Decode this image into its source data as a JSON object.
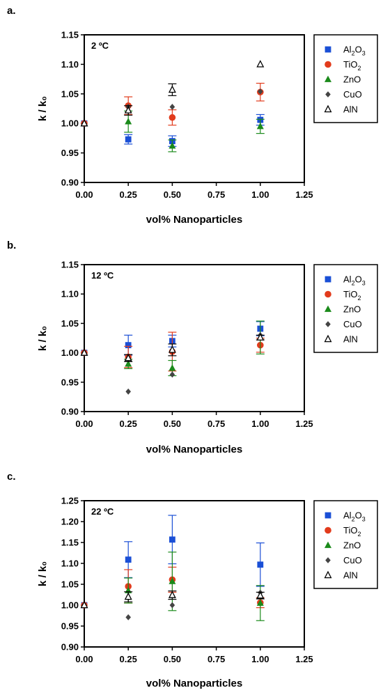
{
  "figure": {
    "series_legend": [
      {
        "key": "Al2O3",
        "base": "Al",
        "sub1": "2",
        "mid": "O",
        "sub2": "3",
        "color": "#1a4fd6",
        "marker": "square"
      },
      {
        "key": "TiO2",
        "base": "TiO",
        "sub1": "2",
        "mid": "",
        "sub2": "",
        "color": "#e23b1c",
        "marker": "circle"
      },
      {
        "key": "ZnO",
        "base": "ZnO",
        "sub1": "",
        "mid": "",
        "sub2": "",
        "color": "#1a8a1a",
        "marker": "triangle"
      },
      {
        "key": "CuO",
        "base": "CuO",
        "sub1": "",
        "mid": "",
        "sub2": "",
        "color": "#444444",
        "marker": "diamond"
      },
      {
        "key": "AlN",
        "base": "AlN",
        "sub1": "",
        "mid": "",
        "sub2": "",
        "color": "#000000",
        "marker": "open-triangle"
      }
    ]
  },
  "chart_data": [
    {
      "type": "scatter",
      "panel": "a.",
      "label": "2 ºC",
      "xlabel": "vol% Nanoparticles",
      "ylabel": "k / k₀",
      "xlim": [
        0,
        1.25
      ],
      "ylim": [
        0.9,
        1.15
      ],
      "xticks": [
        "0.00",
        "0.25",
        "0.50",
        "0.75",
        "1.00",
        "1.25"
      ],
      "yticks": [
        "0.90",
        "0.95",
        "1.00",
        "1.05",
        "1.10",
        "1.15"
      ],
      "legend_position": "right",
      "grid": false,
      "series": [
        {
          "name": "Al2O3",
          "x": [
            0,
            0.25,
            0.5,
            1.0
          ],
          "y": [
            1.0,
            0.973,
            0.97,
            1.006
          ],
          "err": [
            0,
            0.008,
            0.009,
            0.009
          ]
        },
        {
          "name": "TiO2",
          "x": [
            0,
            0.25,
            0.5,
            1.0
          ],
          "y": [
            1.0,
            1.03,
            1.01,
            1.053
          ],
          "err": [
            0,
            0.015,
            0.013,
            0.015
          ]
        },
        {
          "name": "ZnO",
          "x": [
            0,
            0.25,
            0.5,
            1.0
          ],
          "y": [
            1.0,
            1.003,
            0.962,
            0.995
          ],
          "err": [
            0,
            0.018,
            0.01,
            0.012
          ]
        },
        {
          "name": "CuO",
          "x": [
            0,
            0.25,
            0.5,
            1.0
          ],
          "y": [
            1.0,
            1.028,
            1.028,
            1.054
          ],
          "err": [
            0,
            0,
            0,
            0
          ]
        },
        {
          "name": "AlN",
          "x": [
            0,
            0.25,
            0.5,
            1.0
          ],
          "y": [
            1.0,
            1.022,
            1.057,
            1.1
          ],
          "err": [
            0,
            0.008,
            0.01,
            0
          ]
        }
      ]
    },
    {
      "type": "scatter",
      "panel": "b.",
      "label": "12 ºC",
      "xlabel": "vol% Nanoparticles",
      "ylabel": "k / k₀",
      "xlim": [
        0,
        1.25
      ],
      "ylim": [
        0.9,
        1.15
      ],
      "xticks": [
        "0.00",
        "0.25",
        "0.50",
        "0.75",
        "1.00",
        "1.25"
      ],
      "yticks": [
        "0.90",
        "0.95",
        "1.00",
        "1.05",
        "1.10",
        "1.15"
      ],
      "legend_position": "right",
      "grid": false,
      "series": [
        {
          "name": "Al2O3",
          "x": [
            0,
            0.25,
            0.5,
            1.0
          ],
          "y": [
            1.0,
            1.013,
            1.02,
            1.041
          ],
          "err": [
            0,
            0.017,
            0.01,
            0.012
          ]
        },
        {
          "name": "TiO2",
          "x": [
            0,
            0.25,
            0.5,
            1.0
          ],
          "y": [
            1.0,
            0.993,
            1.002,
            1.013
          ],
          "err": [
            0,
            0.018,
            0.033,
            0.012
          ]
        },
        {
          "name": "ZnO",
          "x": [
            0,
            0.25,
            0.5,
            1.0
          ],
          "y": [
            1.0,
            0.981,
            0.974,
            1.026
          ],
          "err": [
            0,
            0.008,
            0.013,
            0.028
          ]
        },
        {
          "name": "CuO",
          "x": [
            0,
            0.25,
            0.5,
            1.0
          ],
          "y": [
            1.0,
            0.934,
            0.963,
            1.03
          ],
          "err": [
            0,
            0,
            0,
            0
          ]
        },
        {
          "name": "AlN",
          "x": [
            0,
            0.25,
            0.5,
            1.0
          ],
          "y": [
            1.0,
            0.991,
            1.005,
            1.026
          ],
          "err": [
            0,
            0.006,
            0.01,
            0.004
          ]
        }
      ]
    },
    {
      "type": "scatter",
      "panel": "c.",
      "label": "22 ºC",
      "xlabel": "vol% Nanoparticles",
      "ylabel": "k / k₀",
      "xlim": [
        0,
        1.25
      ],
      "ylim": [
        0.9,
        1.25
      ],
      "xticks": [
        "0.00",
        "0.25",
        "0.50",
        "0.75",
        "1.00",
        "1.25"
      ],
      "yticks": [
        "0.90",
        "0.95",
        "1.00",
        "1.05",
        "1.10",
        "1.15",
        "1.20",
        "1.25"
      ],
      "legend_position": "right",
      "grid": false,
      "series": [
        {
          "name": "Al2O3",
          "x": [
            0,
            0.25,
            0.5,
            1.0
          ],
          "y": [
            1.0,
            1.109,
            1.157,
            1.097
          ],
          "err": [
            0,
            0.043,
            0.058,
            0.052
          ]
        },
        {
          "name": "TiO2",
          "x": [
            0,
            0.25,
            0.5,
            1.0
          ],
          "y": [
            1.0,
            1.045,
            1.061,
            1.006
          ],
          "err": [
            0,
            0.04,
            0.03,
            0.012
          ]
        },
        {
          "name": "ZnO",
          "x": [
            0,
            0.25,
            0.5,
            1.0
          ],
          "y": [
            1.0,
            1.035,
            1.057,
            1.005
          ],
          "err": [
            0,
            0.03,
            0.07,
            0.042
          ]
        },
        {
          "name": "CuO",
          "x": [
            0,
            0.25,
            0.5,
            1.0
          ],
          "y": [
            1.0,
            0.971,
            1.0,
            1.03
          ],
          "err": [
            0,
            0,
            0,
            0
          ]
        },
        {
          "name": "AlN",
          "x": [
            0,
            0.25,
            0.5,
            1.0
          ],
          "y": [
            1.0,
            1.02,
            1.024,
            1.023
          ],
          "err": [
            0,
            0.012,
            0.01,
            0.008
          ]
        }
      ]
    }
  ]
}
